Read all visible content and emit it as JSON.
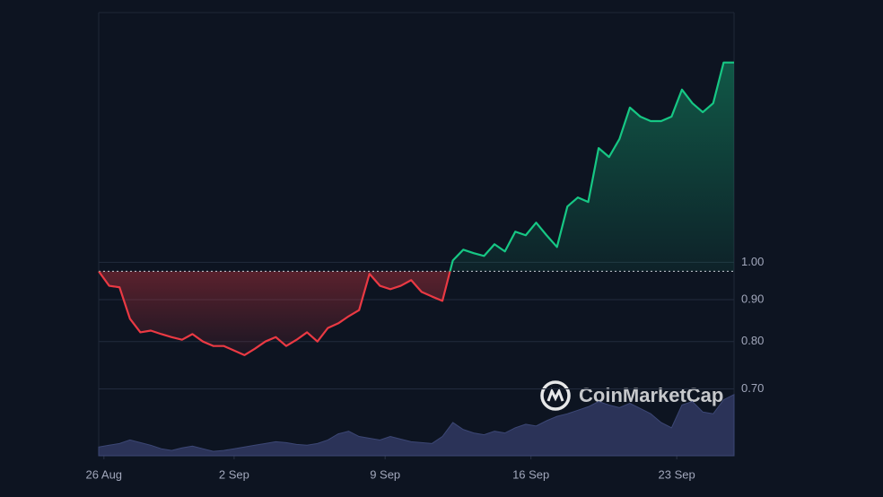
{
  "chart_data": {
    "type": "line",
    "watermark": "CoinMarketCap",
    "log_scale": true,
    "grid": true,
    "up_color": "#16c784",
    "down_color": "#ea3943",
    "volume_color": "#2b3358",
    "values": [
      0.975,
      0.936,
      0.932,
      0.853,
      0.821,
      0.825,
      0.817,
      0.81,
      0.804,
      0.817,
      0.8,
      0.79,
      0.79,
      0.78,
      0.77,
      0.784,
      0.8,
      0.81,
      0.79,
      0.804,
      0.821,
      0.8,
      0.831,
      0.842,
      0.859,
      0.874,
      0.968,
      0.936,
      0.927,
      0.936,
      0.951,
      0.92,
      0.908,
      0.897,
      1.005,
      1.036,
      1.026,
      1.018,
      1.052,
      1.031,
      1.09,
      1.079,
      1.118,
      1.079,
      1.044,
      1.17,
      1.2,
      1.185,
      1.379,
      1.345,
      1.415,
      1.546,
      1.507,
      1.488,
      1.488,
      1.507,
      1.626,
      1.565,
      1.526,
      1.565,
      1.755,
      1.755
    ],
    "volume": [
      10,
      12,
      14,
      18,
      15,
      12,
      8,
      6,
      9,
      11,
      8,
      5,
      6,
      8,
      10,
      12,
      14,
      16,
      15,
      13,
      12,
      14,
      18,
      25,
      28,
      22,
      20,
      18,
      22,
      19,
      16,
      15,
      14,
      22,
      38,
      30,
      26,
      24,
      28,
      26,
      32,
      36,
      34,
      40,
      45,
      48,
      52,
      56,
      62,
      58,
      55,
      60,
      54,
      48,
      38,
      32,
      58,
      62,
      50,
      48,
      64,
      70
    ],
    "vlim": [
      0,
      80
    ],
    "xlim": [
      0,
      61
    ],
    "xticks": [
      {
        "value": 0.5,
        "label": "26 Aug"
      },
      {
        "value": 13,
        "label": "2 Sep"
      },
      {
        "value": 27.5,
        "label": "9 Sep"
      },
      {
        "value": 41.5,
        "label": "16 Sep"
      },
      {
        "value": 55.5,
        "label": "23 Sep"
      }
    ],
    "ylim": [
      0.58,
      2.02
    ],
    "yticks": [
      {
        "value": 0.7,
        "label": "0.70"
      },
      {
        "value": 0.8,
        "label": "0.80"
      },
      {
        "value": 0.9,
        "label": "0.90"
      },
      {
        "value": 1.0,
        "label": "1.00"
      }
    ]
  }
}
